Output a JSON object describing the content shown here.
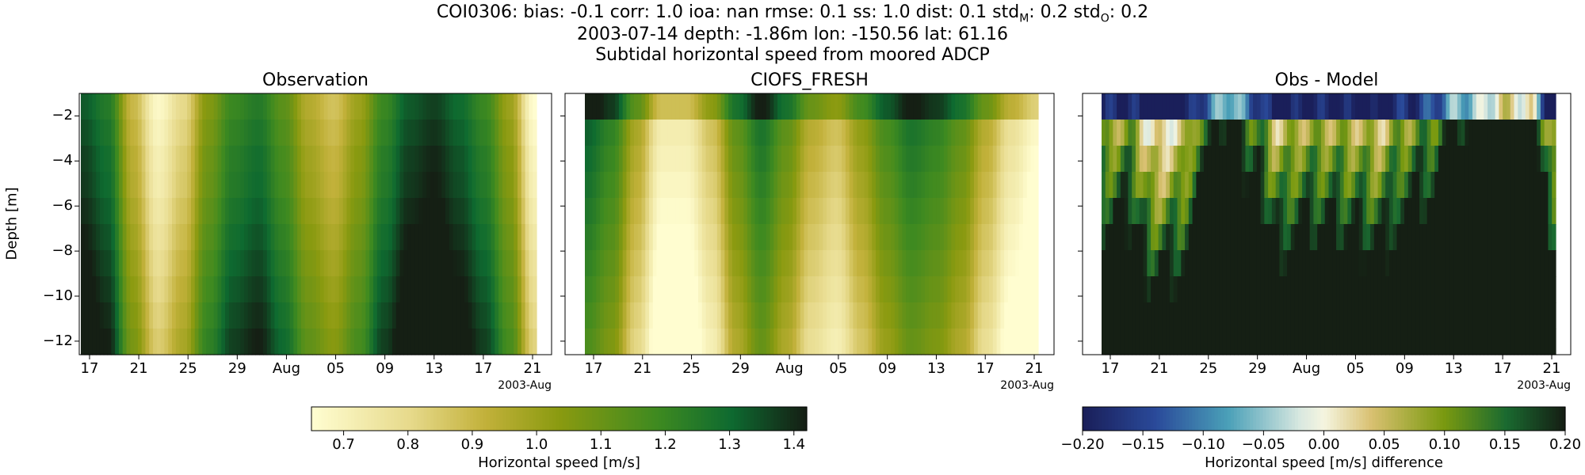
{
  "header": {
    "line1": "COI0306: bias: -0.1  corr: 1.0  ioa: nan  rmse: 0.1  ss: 1.0  dist: 0.1  std",
    "line1_sub_m": "M",
    "line1_mid": ": 0.2  std",
    "line1_sub_o": "O",
    "line1_end": ": 0.2",
    "line2": "2003-07-14 depth: -1.86m lon: -150.56 lat: 61.16",
    "line3": "Subtidal horizontal speed from moored ADCP"
  },
  "chart_data": [
    {
      "type": "heatmap",
      "title": "Observation",
      "ylabel": "Depth [m]",
      "x_ticks": [
        "17",
        "21",
        "25",
        "29",
        "Aug",
        "05",
        "09",
        "13",
        "17",
        "21"
      ],
      "x_offset_label": "2003-Aug",
      "y_ticks": [
        "-2",
        "-4",
        "-6",
        "-8",
        "-10",
        "-12"
      ],
      "ylim": [
        -12.6,
        -1.0
      ],
      "profile": [
        1.38,
        1.3,
        0.95,
        0.72,
        0.85,
        1.1,
        1.25,
        1.3,
        1.18,
        1.0,
        0.92,
        1.05,
        1.25,
        1.38,
        1.42,
        1.35,
        1.25,
        1.05,
        0.7
      ],
      "depth_shift": [
        -0.05,
        -0.03,
        -0.01,
        0.0,
        0.02,
        0.04,
        0.06,
        0.08,
        0.1,
        0.12
      ],
      "vmin": 0.65,
      "vmax": 1.42
    },
    {
      "type": "heatmap",
      "title": "CIOFS_FRESH",
      "x_ticks": [
        "17",
        "21",
        "25",
        "29",
        "Aug",
        "05",
        "09",
        "13",
        "17",
        "21"
      ],
      "x_offset_label": "2003-Aug",
      "ylim": [
        -12.6,
        -1.0
      ],
      "profile": [
        1.3,
        1.2,
        0.95,
        0.7,
        0.7,
        0.85,
        1.1,
        1.25,
        1.1,
        0.92,
        0.85,
        1.0,
        1.15,
        1.25,
        1.2,
        1.1,
        0.92,
        0.75,
        0.65
      ],
      "depth_shift": [
        0.1,
        0.02,
        0.0,
        -0.02,
        -0.04,
        -0.06,
        -0.08,
        -0.1,
        -0.12,
        -0.14
      ],
      "vmin": 0.65,
      "vmax": 1.42
    },
    {
      "type": "heatmap",
      "title": "Obs - Model",
      "x_ticks": [
        "17",
        "21",
        "25",
        "29",
        "Aug",
        "05",
        "09",
        "13",
        "17",
        "21"
      ],
      "x_offset_label": "2003-Aug",
      "ylim": [
        -12.6,
        -1.0
      ],
      "vmin": -0.2,
      "vmax": 0.2
    }
  ],
  "colorbars": [
    {
      "label": "Horizontal speed [m/s]",
      "ticks": [
        "0.7",
        "0.8",
        "0.9",
        "1.0",
        "1.1",
        "1.2",
        "1.3",
        "1.4"
      ],
      "vmin": 0.65,
      "vmax": 1.42
    },
    {
      "label": "Horizontal speed [m/s] difference",
      "ticks": [
        "−0.20",
        "−0.15",
        "−0.10",
        "−0.05",
        "0.00",
        "0.05",
        "0.10",
        "0.15",
        "0.20"
      ],
      "vmin": -0.2,
      "vmax": 0.2
    }
  ],
  "colors": {
    "speed_low": "#fffdd0",
    "speed_mid": "#8a9a10",
    "speed_high": "#0e6a30",
    "speed_top": "#151f14",
    "diff_neg": "#1a1f5a",
    "diff_zero": "#f5f5e0",
    "diff_pos": "#151f14"
  }
}
